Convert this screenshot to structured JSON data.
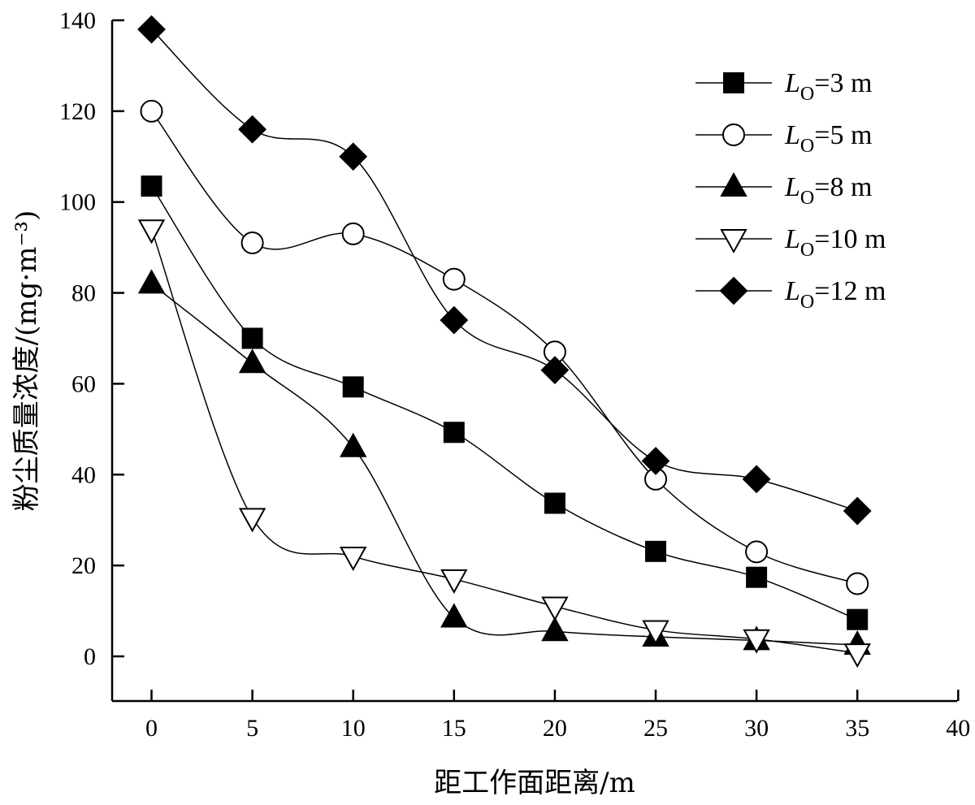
{
  "chart_data": {
    "type": "line",
    "xlabel": "距工作面距离/m",
    "ylabel": "粉尘质量浓度/(mg·m⁻³)",
    "xlim": [
      -2,
      40
    ],
    "ylim": [
      -10,
      140
    ],
    "xticks": [
      0,
      5,
      10,
      15,
      20,
      25,
      30,
      35,
      40
    ],
    "yticks": [
      0,
      20,
      40,
      60,
      80,
      100,
      120,
      140
    ],
    "x": [
      0,
      5,
      10,
      15,
      20,
      25,
      30,
      35
    ],
    "legend_position": "top-right",
    "grid": false,
    "series": [
      {
        "name": "L",
        "sub": "O",
        "suffix": "=3 m",
        "marker": "square",
        "values": [
          103.5,
          70,
          59.3,
          49.3,
          33.7,
          23.1,
          17.4,
          8.1
        ]
      },
      {
        "name": "L",
        "sub": "O",
        "suffix": "=5 m",
        "marker": "circle-open",
        "values": [
          120,
          91,
          93,
          83,
          67,
          39,
          23,
          16
        ]
      },
      {
        "name": "L",
        "sub": "O",
        "suffix": "=8 m",
        "marker": "triangle-up",
        "values": [
          82,
          64.5,
          46,
          8.5,
          5.5,
          4.3,
          3.5,
          2.5
        ]
      },
      {
        "name": "L",
        "sub": "O",
        "suffix": "=10 m",
        "marker": "triangle-down-open",
        "values": [
          94,
          30.5,
          22,
          17,
          11,
          5.8,
          3.8,
          0.7
        ]
      },
      {
        "name": "L",
        "sub": "O",
        "suffix": "=12 m",
        "marker": "diamond",
        "values": [
          138,
          116,
          110,
          74,
          63,
          43,
          39,
          32
        ]
      }
    ]
  }
}
